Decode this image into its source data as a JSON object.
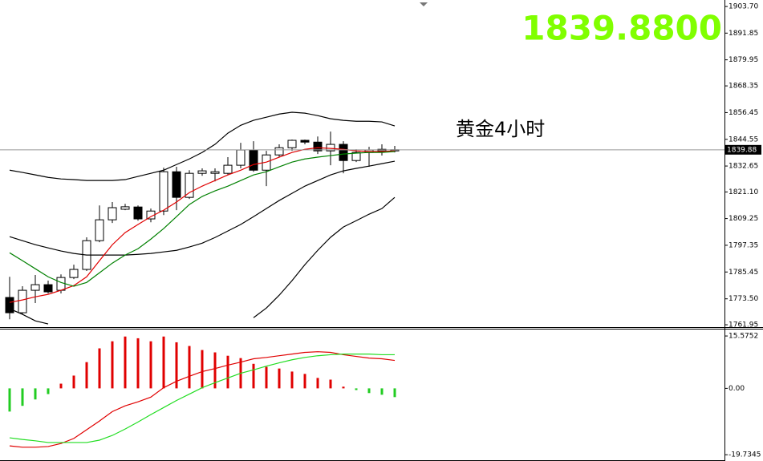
{
  "chart_data": [
    {
      "type": "candlestick",
      "open": [
        1774.1,
        1767.3,
        1777.3,
        1779.8,
        1777.3,
        1783.0,
        1786.6,
        1799.4,
        1808.7,
        1813.4,
        1814.4,
        1809.1,
        1812.6,
        1830.1,
        1818.7,
        1829.4,
        1829.4,
        1829.4,
        1833.0,
        1839.8,
        1830.8,
        1837.6,
        1840.8,
        1844.1,
        1843.3,
        1839.4,
        1842.3,
        1835.1,
        1838.7,
        1839.4,
        1839.4
      ],
      "high": [
        1783.3,
        1779.1,
        1784.1,
        1781.6,
        1784.4,
        1788.7,
        1800.9,
        1815.1,
        1816.6,
        1815.8,
        1815.1,
        1813.7,
        1831.9,
        1832.3,
        1830.8,
        1831.6,
        1831.6,
        1836.6,
        1843.0,
        1843.7,
        1839.4,
        1842.3,
        1844.4,
        1844.4,
        1845.8,
        1848.0,
        1843.7,
        1840.1,
        1841.2,
        1842.3,
        1841.6
      ],
      "low": [
        1764.4,
        1766.6,
        1771.6,
        1775.9,
        1775.9,
        1782.3,
        1785.9,
        1798.7,
        1807.3,
        1813.0,
        1808.3,
        1807.6,
        1810.8,
        1813.0,
        1818.0,
        1828.3,
        1825.8,
        1828.7,
        1831.6,
        1830.1,
        1823.7,
        1836.6,
        1839.4,
        1842.3,
        1838.0,
        1833.0,
        1829.4,
        1834.4,
        1832.3,
        1837.3,
        1838.7
      ],
      "close": [
        1767.3,
        1777.3,
        1779.8,
        1776.6,
        1783.0,
        1786.6,
        1799.4,
        1808.7,
        1814.1,
        1814.5,
        1809.1,
        1812.6,
        1830.1,
        1818.7,
        1829.4,
        1830.5,
        1830.1,
        1833.0,
        1839.8,
        1830.8,
        1837.6,
        1840.8,
        1844.1,
        1843.3,
        1839.4,
        1842.3,
        1835.1,
        1838.7,
        1839.8,
        1840.1,
        1839.88
      ],
      "series": [
        {
          "color": "#000000",
          "values": [
            1830.8,
            1829.8,
            1828.7,
            1827.6,
            1826.9,
            1826.6,
            1826.2,
            1826.2,
            1826.2,
            1826.6,
            1828.0,
            1829.4,
            1830.8,
            1833.3,
            1835.8,
            1838.7,
            1842.3,
            1847.3,
            1850.8,
            1853.0,
            1854.4,
            1855.8,
            1856.6,
            1856.2,
            1855.1,
            1853.7,
            1853.0,
            1852.6,
            1852.6,
            1852.3,
            1850.5
          ]
        },
        {
          "color": "#000000",
          "values": [
            1801.2,
            1799.4,
            1797.6,
            1796.2,
            1794.8,
            1793.7,
            1793.0,
            1793.0,
            1793.0,
            1793.0,
            1793.3,
            1793.7,
            1794.4,
            1795.1,
            1796.6,
            1798.3,
            1800.8,
            1803.7,
            1806.6,
            1810.1,
            1813.7,
            1817.3,
            1820.5,
            1823.7,
            1826.2,
            1828.7,
            1830.5,
            1831.6,
            1832.6,
            1833.7,
            1834.8
          ]
        },
        {
          "color": "#000000",
          "values": [
            1769.1,
            1766.6,
            1763.7,
            1762.3,
            null,
            null,
            null,
            null,
            null,
            null,
            null,
            null,
            null,
            null,
            null,
            null,
            null,
            null,
            null,
            1765.1,
            1769.4,
            1775.1,
            1781.6,
            1788.7,
            1795.1,
            1800.9,
            1805.5,
            1808.3,
            1811.2,
            1813.7,
            1818.7
          ]
        },
        {
          "color": "#e00000",
          "values": [
            1771.9,
            1773.0,
            1774.4,
            1775.5,
            1777.3,
            1779.4,
            1783.3,
            1790.5,
            1797.6,
            1803.0,
            1806.6,
            1810.1,
            1813.0,
            1816.6,
            1820.8,
            1823.7,
            1826.2,
            1828.7,
            1830.8,
            1833.3,
            1834.4,
            1836.6,
            1838.7,
            1840.1,
            1840.8,
            1840.5,
            1840.1,
            1839.4,
            1839.1,
            1839.1,
            1839.4
          ]
        },
        {
          "color": "#008000",
          "values": [
            1794.0,
            1790.5,
            1786.9,
            1783.3,
            1780.8,
            1779.1,
            1780.8,
            1785.1,
            1789.4,
            1793.0,
            1795.8,
            1800.1,
            1804.8,
            1810.1,
            1815.5,
            1819.1,
            1821.6,
            1823.7,
            1826.2,
            1828.7,
            1830.1,
            1832.3,
            1834.4,
            1835.8,
            1836.6,
            1837.3,
            1838.0,
            1838.4,
            1838.7,
            1838.7,
            1839.1
          ]
        }
      ],
      "ylim": [
        1760.9,
        1906.6
      ],
      "yticks": [
        {
          "value": 1903.7,
          "label": "1903.70"
        },
        1891.85,
        1879.95,
        1868.35,
        1856.45,
        1844.55,
        1832.65,
        {
          "value": 1821.1,
          "label": "1821.10"
        },
        1809.25,
        1797.35,
        1785.45,
        {
          "value": 1773.5,
          "label": "1773.50"
        },
        1761.95
      ],
      "price_line": {
        "value": 1839.88,
        "label": "1839.88"
      },
      "bid_display": "1839.8800",
      "annotation": "黄金4小时"
    },
    {
      "type": "macd",
      "values": [
        -6.9,
        -5.2,
        -3.3,
        -1.7,
        1.4,
        3.8,
        7.8,
        11.9,
        14.0,
        15.4,
        14.9,
        14.0,
        15.4,
        13.7,
        12.6,
        11.4,
        10.7,
        9.7,
        9.0,
        7.3,
        6.4,
        5.9,
        5.0,
        4.3,
        3.1,
        2.6,
        0.5,
        -0.5,
        -1.4,
        -1.9,
        -2.6
      ],
      "up_color": "#e00000",
      "down_color": "#22cc22",
      "series": [
        {
          "color": "#e00000",
          "values": [
            -17.1,
            -17.5,
            -17.5,
            -17.3,
            -16.4,
            -14.9,
            -12.3,
            -9.7,
            -6.9,
            -5.2,
            -4.0,
            -2.6,
            0.2,
            2.1,
            3.6,
            5.0,
            5.9,
            6.9,
            7.8,
            8.8,
            9.2,
            9.7,
            10.2,
            10.7,
            10.9,
            10.7,
            10.0,
            9.5,
            9.0,
            8.8,
            8.3
          ]
        },
        {
          "color": "#22dd22",
          "values": [
            -14.7,
            -15.2,
            -15.6,
            -16.1,
            -16.1,
            -16.1,
            -16.1,
            -15.4,
            -14.0,
            -12.1,
            -10.0,
            -7.8,
            -5.7,
            -3.6,
            -1.7,
            0.2,
            1.7,
            3.1,
            4.5,
            5.5,
            6.6,
            7.6,
            8.5,
            9.2,
            9.7,
            10.0,
            10.2,
            10.2,
            10.2,
            10.0,
            10.0
          ]
        }
      ],
      "ylim": [
        -21.6,
        17.5
      ],
      "yticks": [
        15.5752,
        {
          "value": 0,
          "label": "0.00"
        },
        -19.7345
      ]
    }
  ]
}
